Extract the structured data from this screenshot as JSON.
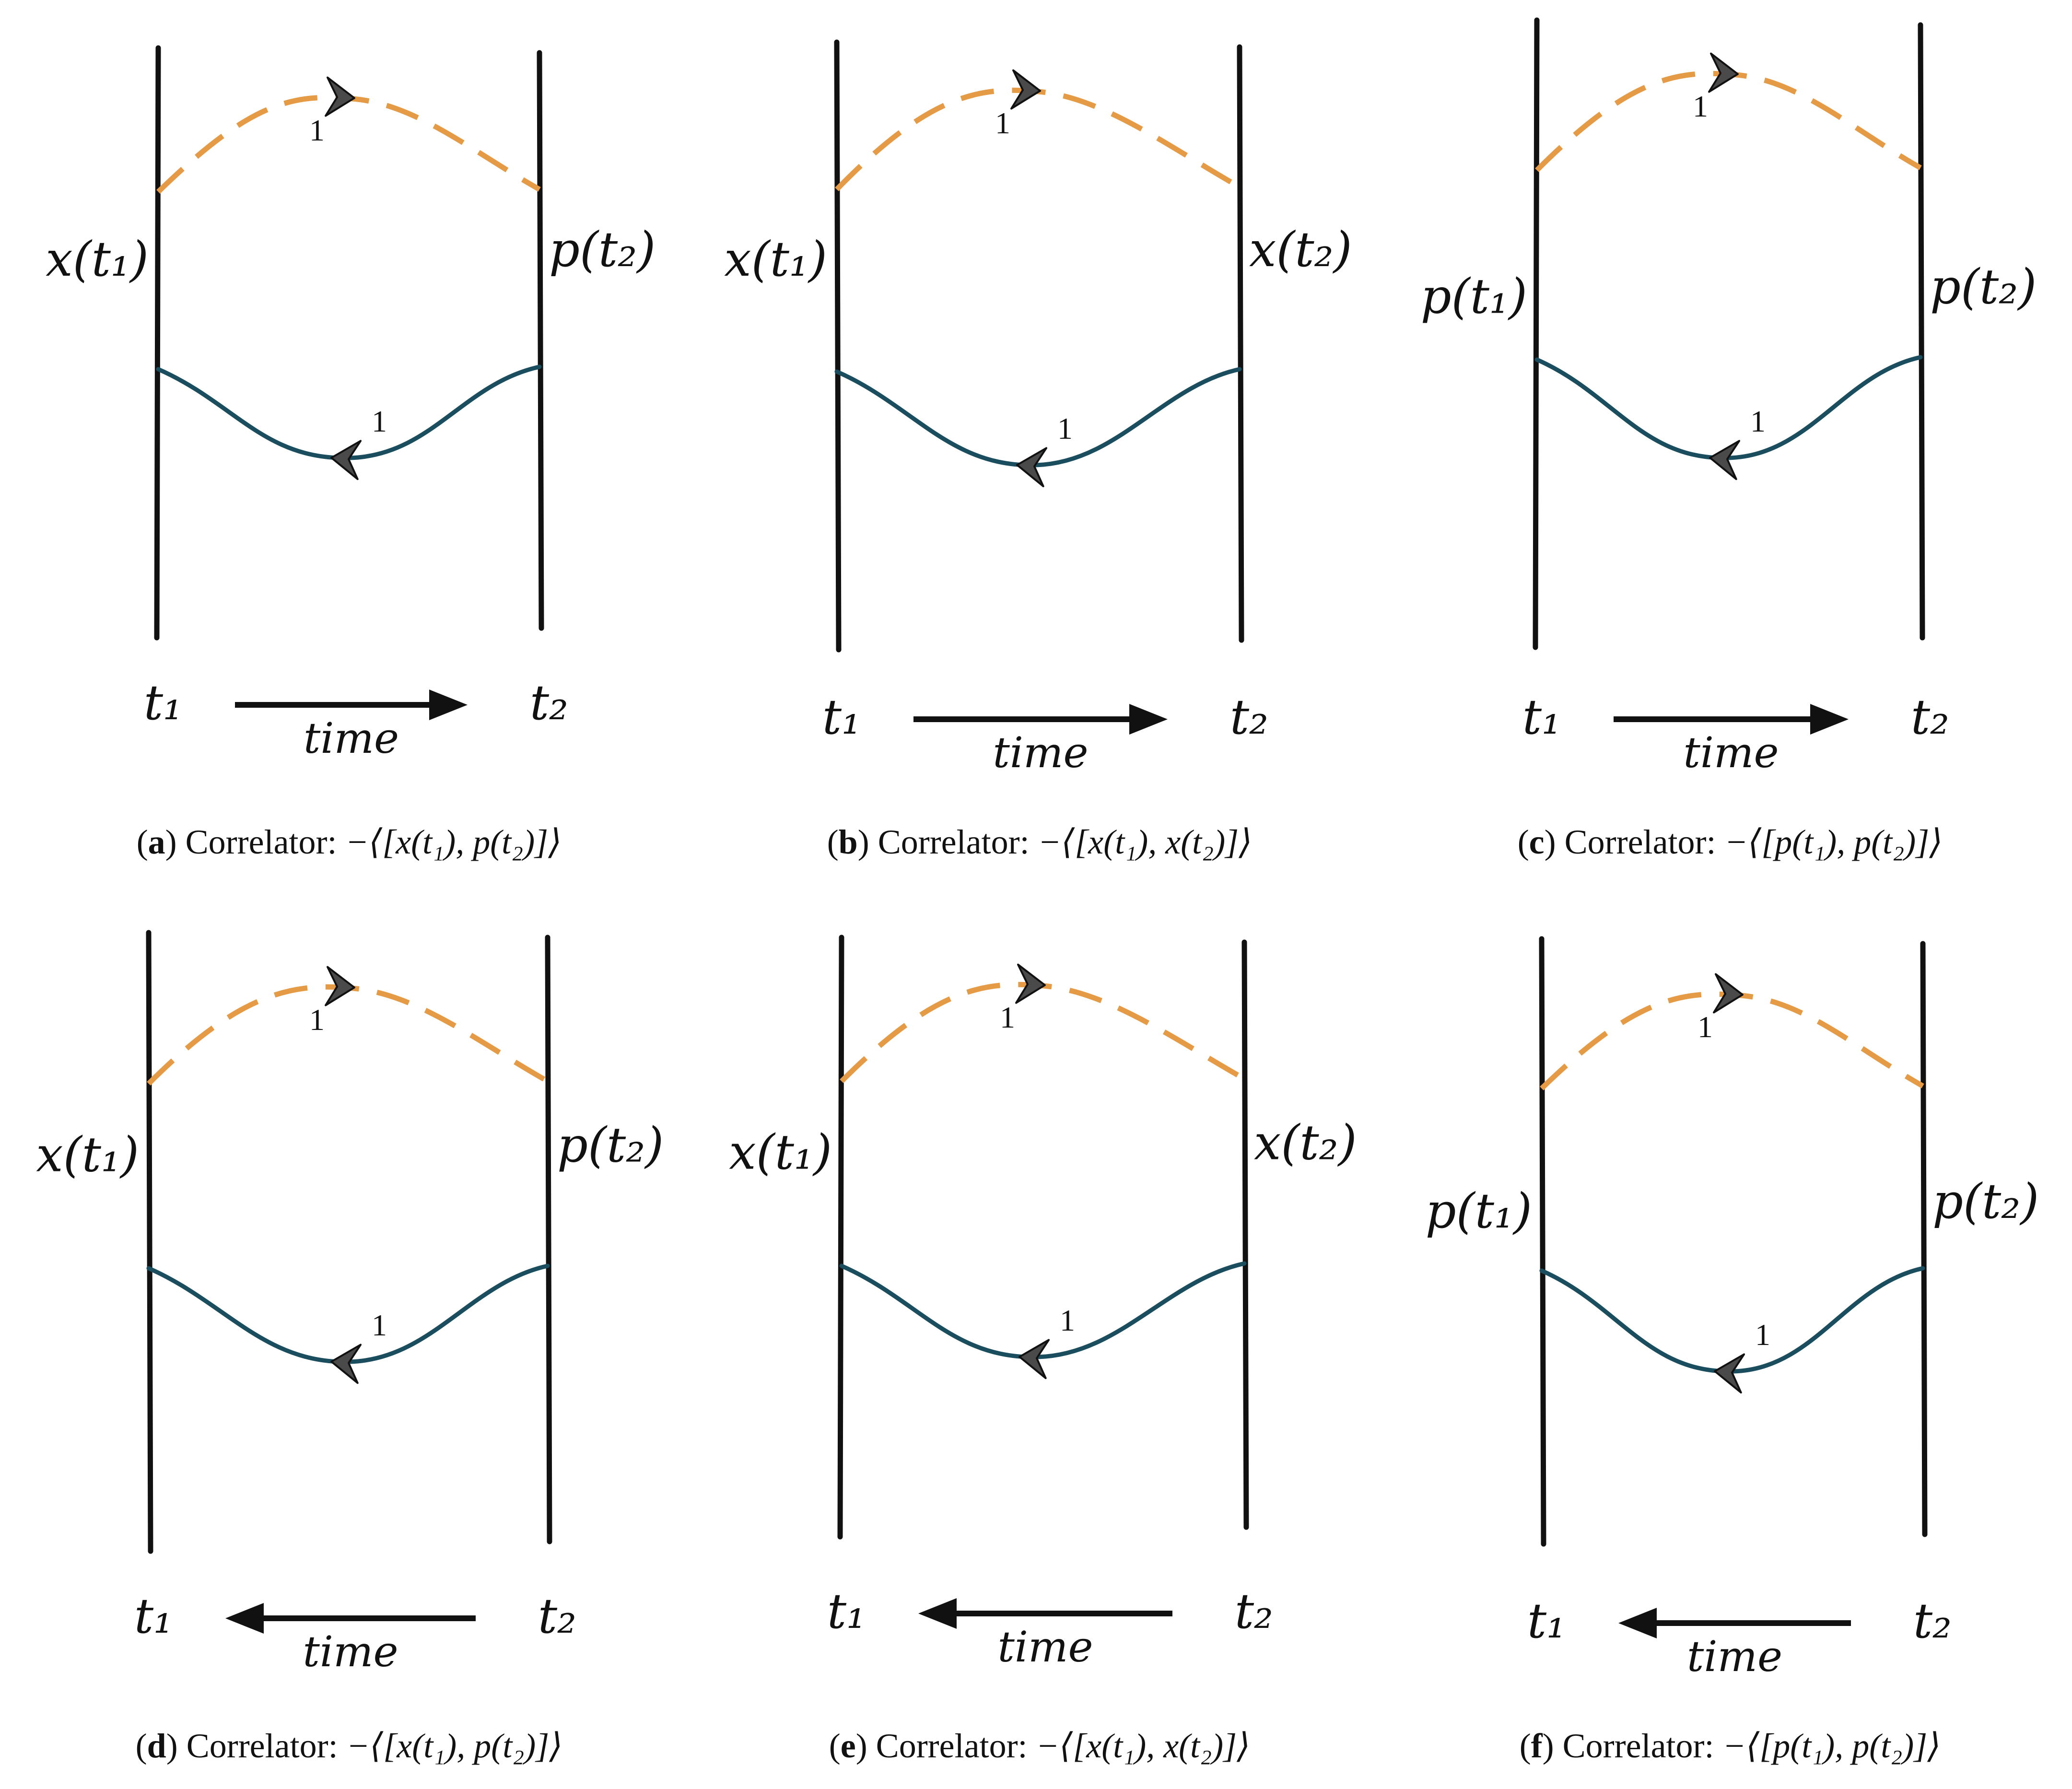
{
  "figure": {
    "colors": {
      "line": "#111111",
      "dashed_curve": "#E59A45",
      "solid_curve": "#1A4D5E",
      "arrowhead": "#4A4A4A",
      "arrowhead_edge": "#111111"
    },
    "panels": [
      {
        "id": "a",
        "left_label": "x(t₁)",
        "right_label": "p(t₂)",
        "upper_curve_label": "1",
        "lower_curve_label": "1",
        "time_start": "t₁",
        "time_end": "t₂",
        "time_word": "time",
        "time_direction": "forward",
        "caption_letter": "a",
        "caption_prefix": " Correlator: ",
        "caption_formula": "−⟨[x(t₁), p(t₂)]⟩"
      },
      {
        "id": "b",
        "left_label": "x(t₁)",
        "right_label": "x(t₂)",
        "upper_curve_label": "1",
        "lower_curve_label": "1",
        "time_start": "t₁",
        "time_end": "t₂",
        "time_word": "time",
        "time_direction": "forward",
        "caption_letter": "b",
        "caption_prefix": " Correlator: ",
        "caption_formula": "−⟨[x(t₁), x(t₂)]⟩"
      },
      {
        "id": "c",
        "left_label": "p(t₁)",
        "right_label": "p(t₂)",
        "upper_curve_label": "1",
        "lower_curve_label": "1",
        "time_start": "t₁",
        "time_end": "t₂",
        "time_word": "time",
        "time_direction": "forward",
        "caption_letter": "c",
        "caption_prefix": " Correlator: ",
        "caption_formula": "−⟨[p(t₁), p(t₂)]⟩"
      },
      {
        "id": "d",
        "left_label": "x(t₁)",
        "right_label": "p(t₂)",
        "upper_curve_label": "1",
        "lower_curve_label": "1",
        "time_start": "t₁",
        "time_end": "t₂",
        "time_word": "time",
        "time_direction": "backward",
        "caption_letter": "d",
        "caption_prefix": " Correlator: ",
        "caption_formula": "−⟨[x(t₁), p(t₂)]⟩"
      },
      {
        "id": "e",
        "left_label": "x(t₁)",
        "right_label": "x(t₂)",
        "upper_curve_label": "1",
        "lower_curve_label": "1",
        "time_start": "t₁",
        "time_end": "t₂",
        "time_word": "time",
        "time_direction": "backward",
        "caption_letter": "e",
        "caption_prefix": " Correlator: ",
        "caption_formula": "−⟨[x(t₁), x(t₂)]⟩"
      },
      {
        "id": "f",
        "left_label": "p(t₁)",
        "right_label": "p(t₂)",
        "upper_curve_label": "1",
        "lower_curve_label": "1",
        "time_start": "t₁",
        "time_end": "t₂",
        "time_word": "time",
        "time_direction": "backward",
        "caption_letter": "f",
        "caption_prefix": " Correlator: ",
        "caption_formula": "−⟨[p(t₁), p(t₂)]⟩"
      }
    ]
  }
}
